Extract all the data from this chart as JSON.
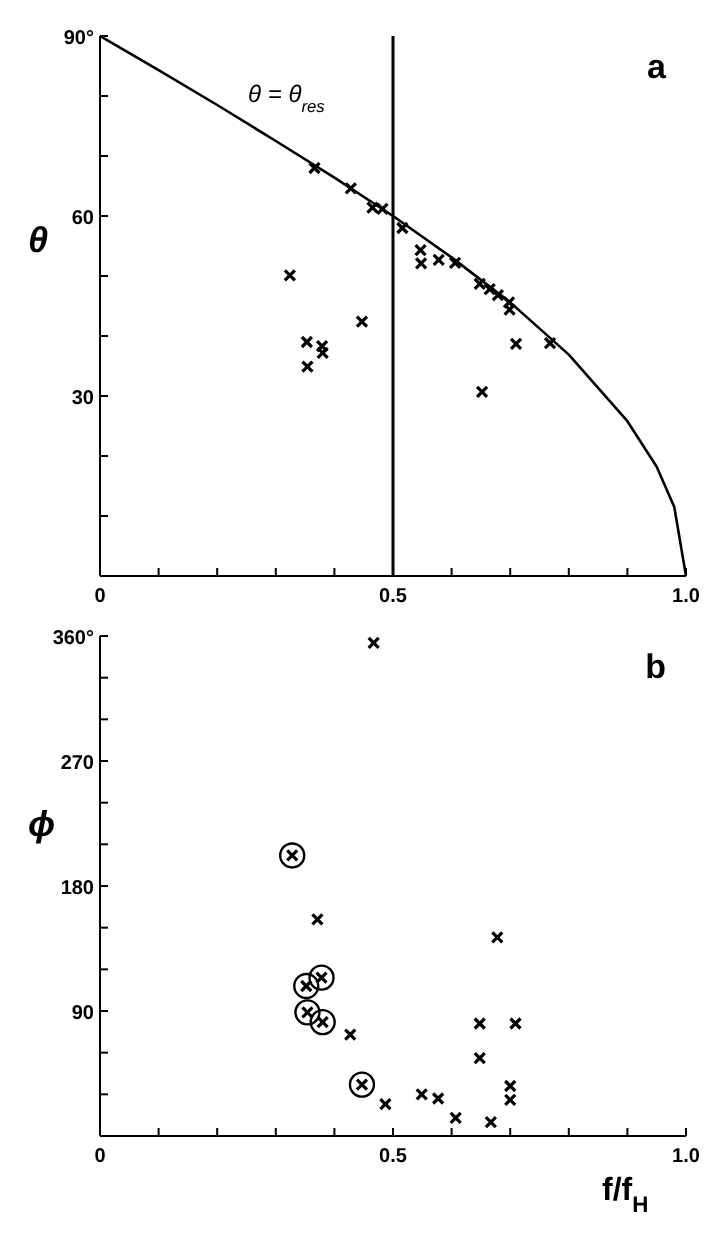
{
  "chart_data": [
    {
      "type": "scatter",
      "ylabel": "θ",
      "xlim": [
        0,
        1
      ],
      "ylim": [
        0,
        90
      ],
      "xticks": [
        {
          "value": 0,
          "label": "0"
        },
        {
          "value": 0.1,
          "label": null
        },
        {
          "value": 0.2,
          "label": null
        },
        {
          "value": 0.3,
          "label": null
        },
        {
          "value": 0.4,
          "label": null
        },
        0.5,
        {
          "value": 0.6,
          "label": null
        },
        {
          "value": 0.7,
          "label": null
        },
        {
          "value": 0.8,
          "label": null
        },
        {
          "value": 0.9,
          "label": null
        },
        {
          "value": 1,
          "label": "1.0"
        }
      ],
      "yticks": [
        {
          "value": 10,
          "label": null
        },
        {
          "value": 20,
          "label": null
        },
        30,
        {
          "value": 40,
          "label": null
        },
        {
          "value": 50,
          "label": null
        },
        60,
        {
          "value": 70,
          "label": null
        },
        {
          "value": 80,
          "label": null
        },
        {
          "value": 90,
          "label": "90°"
        }
      ],
      "grid": false,
      "legend": false,
      "ref_lines": [
        {
          "axis": "x",
          "value": 0.5,
          "color": "#000000"
        }
      ],
      "annotations": [
        "a",
        {
          "text": "θ = θ$_{res}$",
          "x": 0.28,
          "y": 73.7
        }
      ],
      "series": [
        {
          "type": "line",
          "color": "#000000",
          "x": [
            0,
            0.1,
            0.2,
            0.3,
            0.4,
            0.5,
            0.6,
            0.7,
            0.8,
            0.9,
            0.95,
            0.98,
            1
          ],
          "values": [
            90,
            84.3,
            78.5,
            72.5,
            66.4,
            60,
            53.1,
            45.6,
            36.9,
            25.8,
            18.2,
            11.5,
            0
          ]
        },
        {
          "marker": "cross",
          "color": "#000000",
          "x": [
            0.366,
            0.428,
            0.465,
            0.482,
            0.516,
            0.547,
            0.548,
            0.578,
            0.606,
            0.648,
            0.665,
            0.679,
            0.698,
            0.699,
            0.71,
            0.768,
            0.652,
            0.324,
            0.353,
            0.354,
            0.379,
            0.38,
            0.447
          ],
          "values": [
            68,
            64.6,
            61.4,
            61.2,
            58,
            54.3,
            52.1,
            52.7,
            52.2,
            48.7,
            47.8,
            46.8,
            45.6,
            44.4,
            38.7,
            38.8,
            30.7,
            50.1,
            39,
            34.9,
            38.3,
            37.2,
            42.4
          ]
        }
      ]
    },
    {
      "type": "scatter",
      "ylabel": "ϕ",
      "xlabel": "f/f$_{H}$",
      "xlim": [
        0,
        1
      ],
      "ylim": [
        0,
        360
      ],
      "xticks": [
        {
          "value": 0,
          "label": "0"
        },
        {
          "value": 0.1,
          "label": null
        },
        {
          "value": 0.2,
          "label": null
        },
        {
          "value": 0.3,
          "label": null
        },
        {
          "value": 0.4,
          "label": null
        },
        0.5,
        {
          "value": 0.6,
          "label": null
        },
        {
          "value": 0.7,
          "label": null
        },
        {
          "value": 0.8,
          "label": null
        },
        {
          "value": 0.9,
          "label": null
        },
        {
          "value": 1,
          "label": "1.0"
        }
      ],
      "yticks": [
        {
          "value": 30,
          "label": null
        },
        {
          "value": 60,
          "label": null
        },
        90,
        {
          "value": 120,
          "label": null
        },
        {
          "value": 150,
          "label": null
        },
        180,
        {
          "value": 210,
          "label": null
        },
        {
          "value": 240,
          "label": null
        },
        270,
        {
          "value": 300,
          "label": null
        },
        {
          "value": 330,
          "label": null
        },
        {
          "value": 360,
          "label": "360°"
        }
      ],
      "grid": false,
      "legend": false,
      "annotations": [
        "b"
      ],
      "series": [
        {
          "marker": "cross",
          "color": "#000000",
          "x": [
            0.467,
            0.371,
            0.678,
            0.427,
            0.648,
            0.709,
            0.648,
            0.7,
            0.549,
            0.577,
            0.487,
            0.7,
            0.607,
            0.667
          ],
          "values": [
            355,
            156,
            143,
            73,
            81,
            81,
            56,
            36,
            30,
            27,
            23,
            26,
            13,
            10
          ]
        },
        {
          "marker": "circle",
          "color": "#000000",
          "x": [
            0.328,
            0.352,
            0.378,
            0.354,
            0.38,
            0.447
          ],
          "values": [
            202,
            108,
            114,
            89,
            82,
            37
          ]
        }
      ]
    }
  ]
}
